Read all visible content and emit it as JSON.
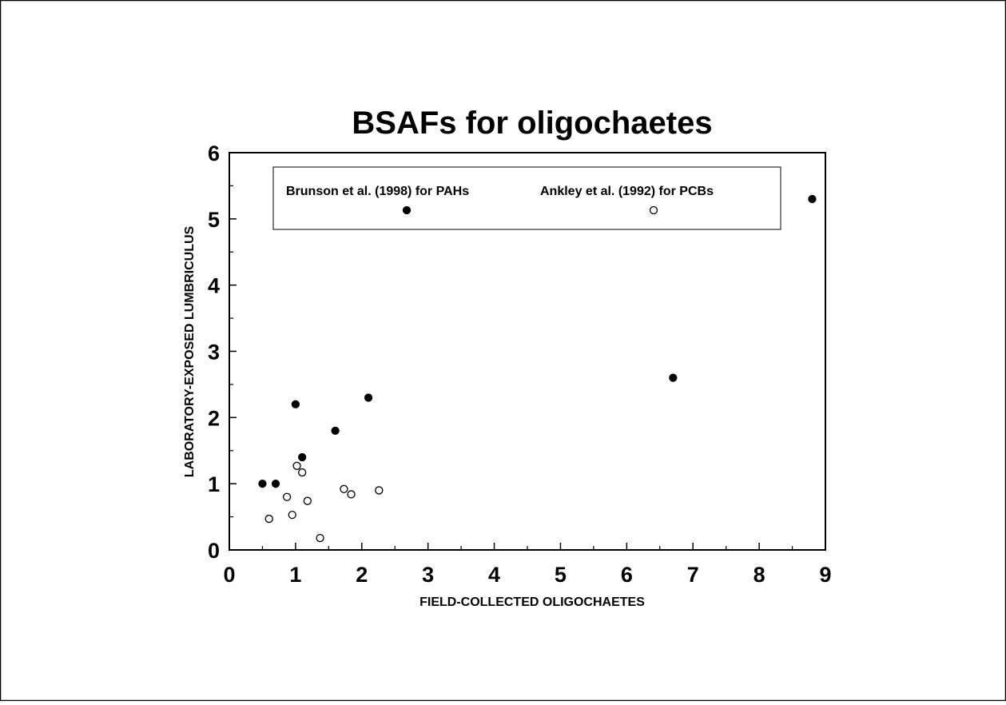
{
  "chart_data": {
    "type": "scatter",
    "title": "BSAFs for oligochaetes",
    "xlabel": "FIELD-COLLECTED OLIGOCHAETES",
    "ylabel": "LABORATORY-EXPOSED LUMBRICULUS",
    "xlim": [
      0,
      9
    ],
    "ylim": [
      0,
      6
    ],
    "xticks": [
      "0",
      "1",
      "2",
      "3",
      "4",
      "5",
      "6",
      "7",
      "8",
      "9"
    ],
    "yticks": [
      "0",
      "1",
      "2",
      "3",
      "4",
      "5",
      "6"
    ],
    "grid": false,
    "legend_position": "top",
    "series": [
      {
        "name": "Brunson et al. (1998) for PAHs",
        "marker": "filled-circle",
        "color": "#000000",
        "points": [
          {
            "x": 0.5,
            "y": 1.0
          },
          {
            "x": 0.7,
            "y": 1.0
          },
          {
            "x": 1.0,
            "y": 2.2
          },
          {
            "x": 1.1,
            "y": 1.4
          },
          {
            "x": 1.6,
            "y": 1.8
          },
          {
            "x": 2.1,
            "y": 2.3
          },
          {
            "x": 6.7,
            "y": 2.6
          },
          {
            "x": 8.8,
            "y": 5.3
          }
        ]
      },
      {
        "name": "Ankley et al. (1992) for PCBs",
        "marker": "open-circle",
        "color": "#000000",
        "points": [
          {
            "x": 0.6,
            "y": 0.47
          },
          {
            "x": 0.87,
            "y": 0.8
          },
          {
            "x": 0.95,
            "y": 0.53
          },
          {
            "x": 1.02,
            "y": 1.27
          },
          {
            "x": 1.1,
            "y": 1.17
          },
          {
            "x": 1.18,
            "y": 0.74
          },
          {
            "x": 1.37,
            "y": 0.18
          },
          {
            "x": 1.73,
            "y": 0.92
          },
          {
            "x": 1.84,
            "y": 0.84
          },
          {
            "x": 2.26,
            "y": 0.9
          }
        ]
      }
    ]
  }
}
